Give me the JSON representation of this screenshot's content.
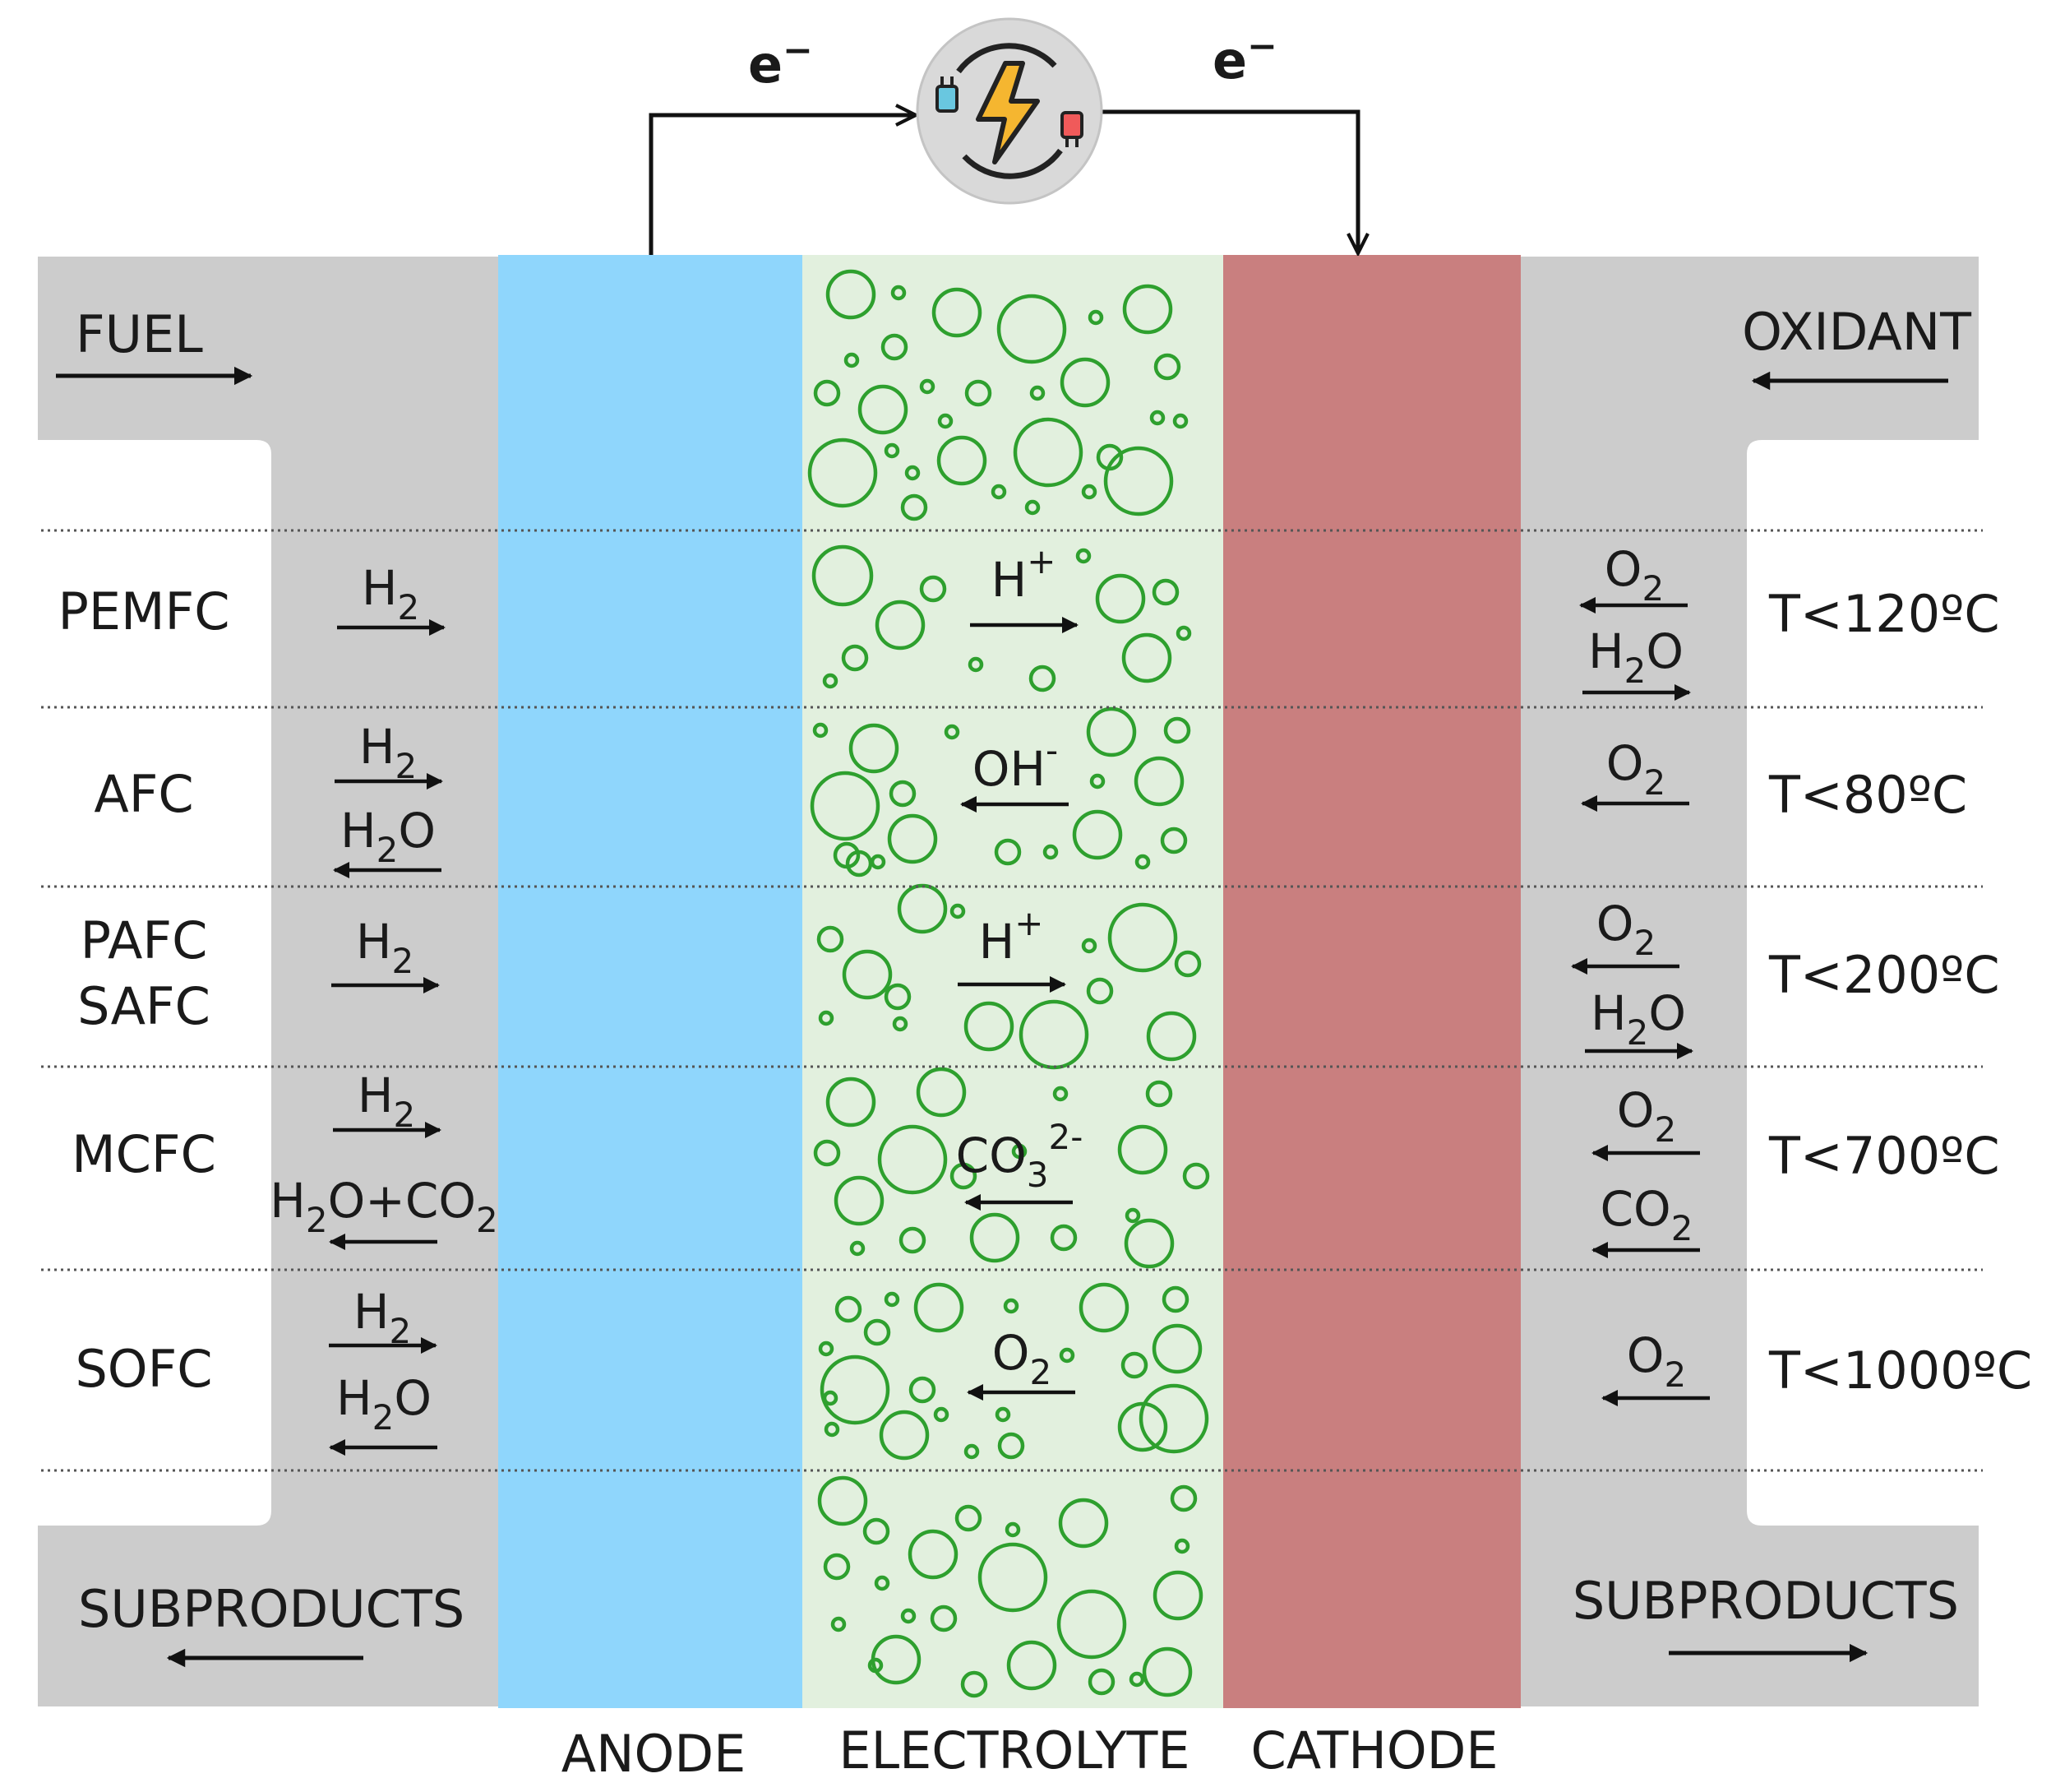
{
  "electrons": {
    "left": "e",
    "right": "e",
    "superscript": "−"
  },
  "header": {
    "fuel": "FUEL",
    "oxidant": "OXIDANT"
  },
  "footer": {
    "left": "SUBPRODUCTS",
    "right": "SUBPRODUCTS"
  },
  "layers": {
    "anode": "ANODE",
    "electrolyte": "ELECTROLYTE",
    "cathode": "CATHODE"
  },
  "icons": {
    "power_source": "plug-lightning-icon"
  },
  "colors": {
    "channel_gray": "#cccccc",
    "anode_blue": "#8fd6fc",
    "electrolyte_bg": "#e2f0de",
    "bubble_green": "#2ea02e",
    "cathode_red": "#c97f7f"
  },
  "rows": [
    {
      "name": "PEMFC",
      "temperature": "T<120ºC",
      "anode_side": [
        {
          "formula": [
            "H",
            {
              "sub": "2"
            }
          ],
          "direction": "right"
        }
      ],
      "ion": {
        "formula": [
          "H",
          {
            "sup": "+"
          }
        ],
        "direction": "right"
      },
      "cathode_side": [
        {
          "formula": [
            "O",
            {
              "sub": "2"
            }
          ],
          "direction": "left"
        },
        {
          "formula": [
            "H",
            {
              "sub": "2"
            },
            "O"
          ],
          "direction": "right"
        }
      ]
    },
    {
      "name": "AFC",
      "temperature": "T<80ºC",
      "anode_side": [
        {
          "formula": [
            "H",
            {
              "sub": "2"
            }
          ],
          "direction": "right"
        },
        {
          "formula": [
            "H",
            {
              "sub": "2"
            },
            "O"
          ],
          "direction": "left"
        }
      ],
      "ion": {
        "formula": [
          "OH",
          {
            "sup": "-"
          }
        ],
        "direction": "left"
      },
      "cathode_side": [
        {
          "formula": [
            "O",
            {
              "sub": "2"
            }
          ],
          "direction": "left"
        }
      ]
    },
    {
      "name": "PAFC\nSAFC",
      "temperature": "T<200ºC",
      "anode_side": [
        {
          "formula": [
            "H",
            {
              "sub": "2"
            }
          ],
          "direction": "right"
        }
      ],
      "ion": {
        "formula": [
          "H",
          {
            "sup": "+"
          }
        ],
        "direction": "right"
      },
      "cathode_side": [
        {
          "formula": [
            "O",
            {
              "sub": "2"
            }
          ],
          "direction": "left"
        },
        {
          "formula": [
            "H",
            {
              "sub": "2"
            },
            "O"
          ],
          "direction": "right"
        }
      ]
    },
    {
      "name": "MCFC",
      "temperature": "T<700ºC",
      "anode_side": [
        {
          "formula": [
            "H",
            {
              "sub": "2"
            }
          ],
          "direction": "right"
        },
        {
          "formula": [
            "H",
            {
              "sub": "2"
            },
            "O+CO",
            {
              "sub": "2"
            }
          ],
          "direction": "left"
        }
      ],
      "ion": {
        "formula": [
          "CO",
          {
            "sub": "3"
          },
          {
            "sup": "2-"
          }
        ],
        "direction": "left"
      },
      "cathode_side": [
        {
          "formula": [
            "O",
            {
              "sub": "2"
            }
          ],
          "direction": "left"
        },
        {
          "formula": [
            "CO",
            {
              "sub": "2"
            }
          ],
          "direction": "left"
        }
      ]
    },
    {
      "name": "SOFC",
      "temperature": "T<1000ºC",
      "anode_side": [
        {
          "formula": [
            "H",
            {
              "sub": "2"
            }
          ],
          "direction": "right"
        },
        {
          "formula": [
            "H",
            {
              "sub": "2"
            },
            "O"
          ],
          "direction": "left"
        }
      ],
      "ion": {
        "formula": [
          "O",
          {
            "sub": "2"
          }
        ],
        "direction": "left"
      },
      "cathode_side": [
        {
          "formula": [
            "O",
            {
              "sub": "2"
            }
          ],
          "direction": "left"
        }
      ]
    }
  ]
}
